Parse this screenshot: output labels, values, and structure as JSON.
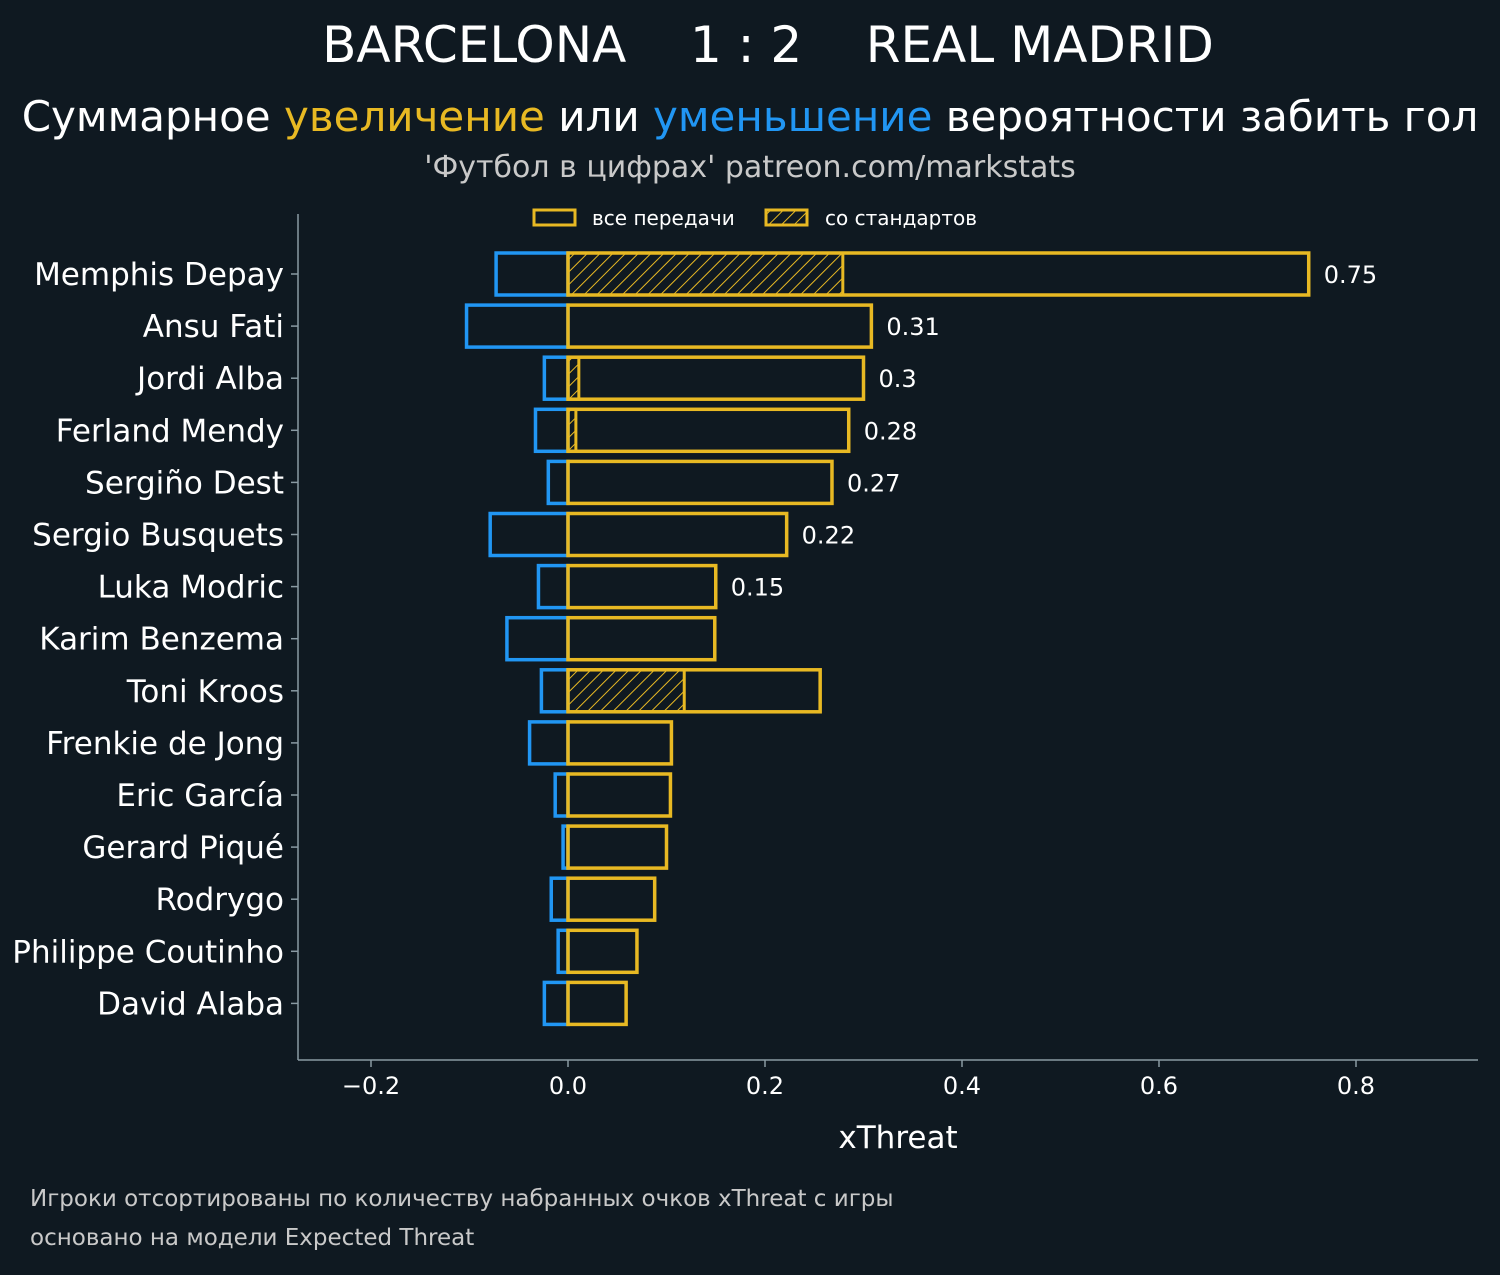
{
  "header": {
    "team_home": "BARCELONA",
    "score": "1 : 2",
    "team_away": "REAL MADRID",
    "subtitle_prefix": "Суммарное ",
    "subtitle_increase": "увеличение",
    "subtitle_middle": " или ",
    "subtitle_decrease": "уменьшение",
    "subtitle_suffix": " вероятности забить гол",
    "source": "'Футбол в цифрах' patreon.com/markstats"
  },
  "footnotes": {
    "line1": "Игроки отсортированы по количеству набранных очков xThreat с игры",
    "line2": "основано на модели Expected Threat"
  },
  "colors": {
    "background": "#0f1921",
    "increase": "#e8b923",
    "decrease": "#2196f3",
    "axis": "#8a9aa3",
    "text": "#ffffff",
    "muted": "#c9c9c9"
  },
  "chart_data": {
    "type": "bar",
    "orientation": "horizontal",
    "xlabel": "xThreat",
    "xlim": [
      -0.275,
      0.92
    ],
    "xticks": [
      -0.2,
      0.0,
      0.2,
      0.4,
      0.6,
      0.8
    ],
    "xtick_labels": [
      "−0.2",
      "0.0",
      "0.2",
      "0.4",
      "0.6",
      "0.8"
    ],
    "grid": false,
    "legend": {
      "placement": "top-center",
      "entries": [
        {
          "label": "все передачи",
          "style": "outline"
        },
        {
          "label": "со стандартов",
          "style": "hatched"
        }
      ]
    },
    "categories": [
      "Memphis Depay",
      "Ansu Fati",
      "Jordi Alba",
      "Ferland Mendy",
      "Sergiño Dest",
      "Sergio Busquets",
      "Luka Modric",
      "Karim Benzema",
      "Toni Kroos",
      "Frenkie de Jong",
      "Eric García",
      "Gerard Piqué",
      "Rodrygo",
      "Philippe Coutinho",
      "David Alaba"
    ],
    "series": [
      {
        "values": [
          0.752,
          0.308,
          0.3,
          0.285,
          0.268,
          0.222,
          0.15,
          0.149,
          0.256,
          0.105,
          0.104,
          0.1,
          0.088,
          0.07,
          0.059
        ]
      },
      {
        "values": [
          -0.073,
          -0.103,
          -0.024,
          -0.033,
          -0.02,
          -0.079,
          -0.03,
          -0.062,
          -0.027,
          -0.039,
          -0.013,
          -0.005,
          -0.017,
          -0.01,
          -0.024
        ]
      },
      {
        "values": [
          0.279,
          0.0,
          0.011,
          0.008,
          0.0,
          0.0,
          0.0,
          0.0,
          0.118,
          0.0,
          0.0,
          0.0,
          0.0,
          0.0,
          0.0
        ]
      }
    ],
    "value_labels": [
      "0.75",
      "0.31",
      "0.3",
      "0.28",
      "0.27",
      "0.22",
      "0.15",
      "",
      "",
      "",
      "",
      "",
      "",
      "",
      ""
    ]
  }
}
